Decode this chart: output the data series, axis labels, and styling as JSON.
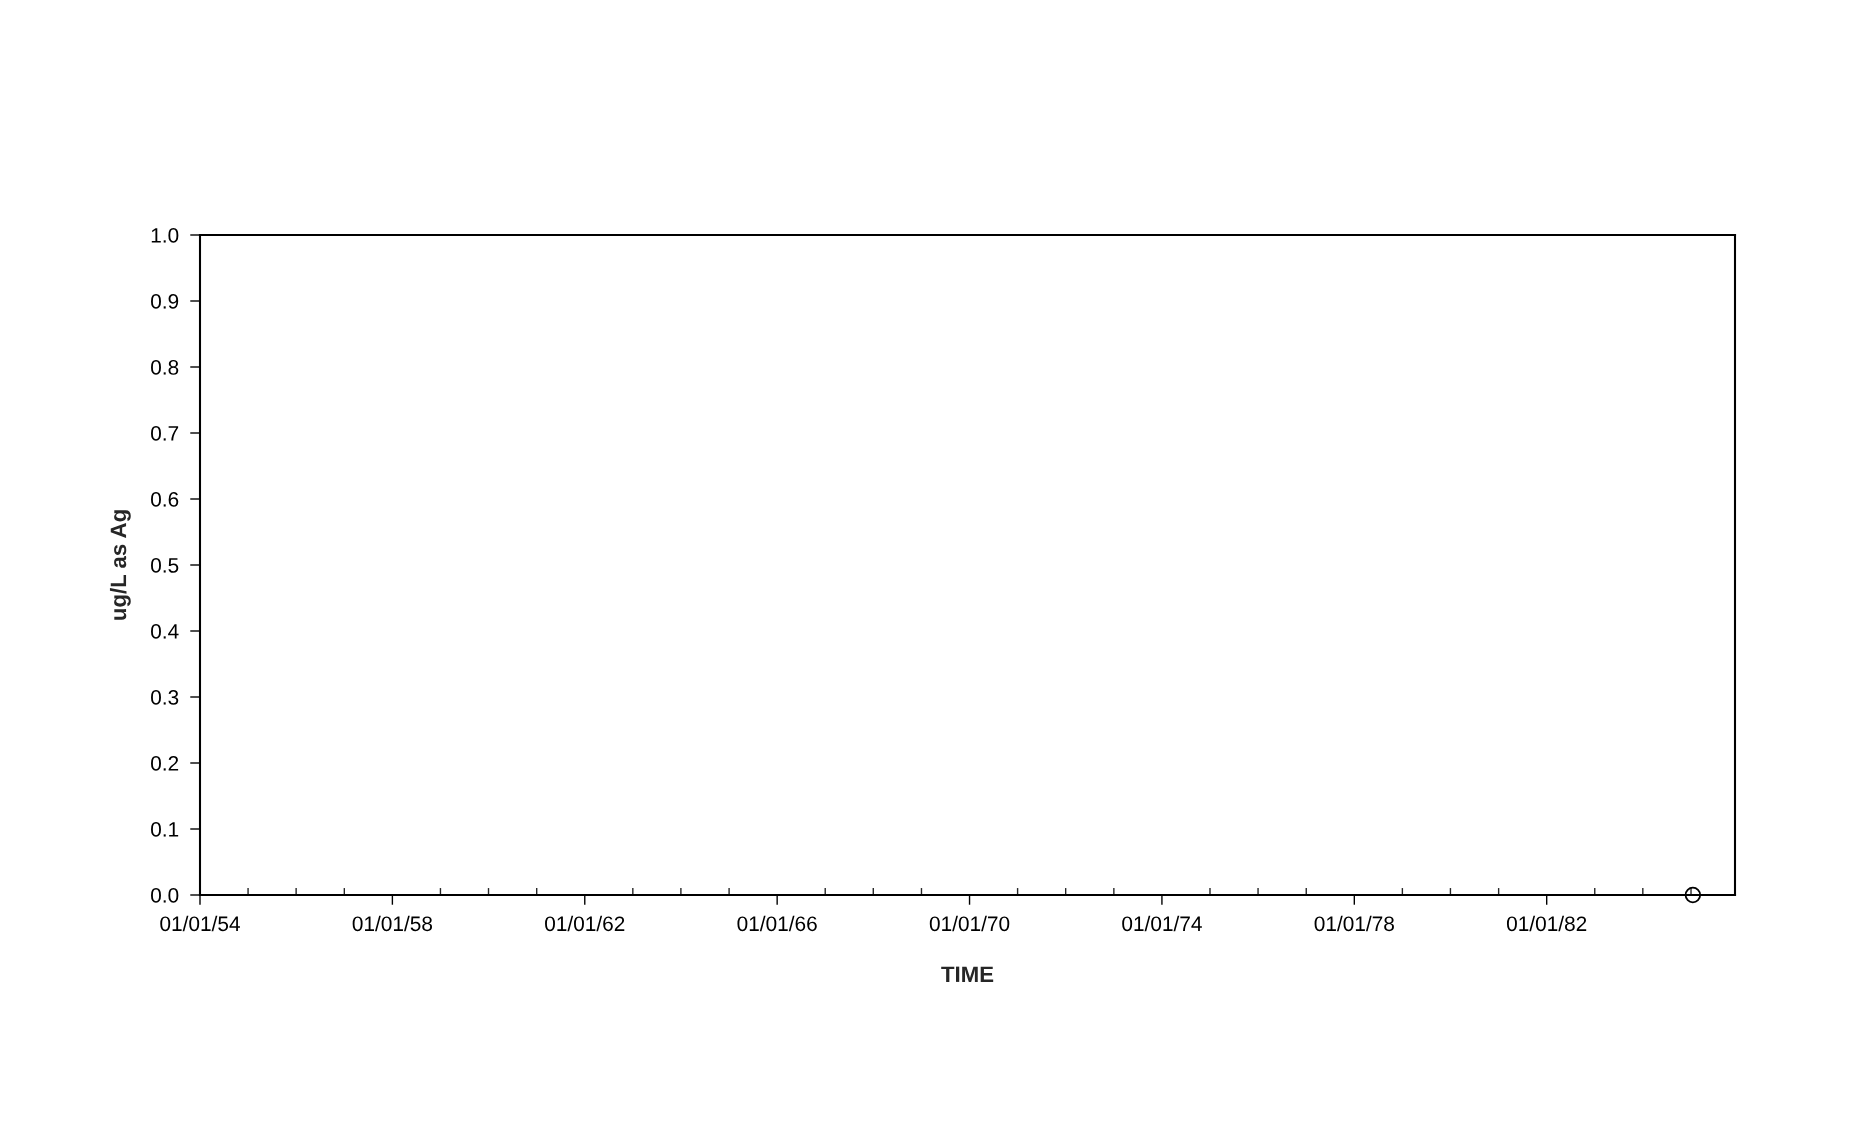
{
  "chart_data": {
    "type": "scatter",
    "xlabel": "TIME",
    "ylabel": "ug/L as Ag",
    "x": [
      "1985-01-15"
    ],
    "values": [
      0
    ],
    "color": "#000000",
    "marker": "circle",
    "xlim": [
      "1954-01-01",
      "1985-12-01"
    ],
    "xticks": [
      {
        "value": "1954-01-01",
        "label": "01/01/54"
      },
      {
        "value": "1955-01-01",
        "label": null
      },
      {
        "value": "1956-01-01",
        "label": null
      },
      {
        "value": "1957-01-01",
        "label": null
      },
      {
        "value": "1958-01-01",
        "label": "01/01/58"
      },
      {
        "value": "1959-01-01",
        "label": null
      },
      {
        "value": "1960-01-01",
        "label": null
      },
      {
        "value": "1961-01-01",
        "label": null
      },
      {
        "value": "1962-01-01",
        "label": "01/01/62"
      },
      {
        "value": "1963-01-01",
        "label": null
      },
      {
        "value": "1964-01-01",
        "label": null
      },
      {
        "value": "1965-01-01",
        "label": null
      },
      {
        "value": "1966-01-01",
        "label": "01/01/66"
      },
      {
        "value": "1967-01-01",
        "label": null
      },
      {
        "value": "1968-01-01",
        "label": null
      },
      {
        "value": "1969-01-01",
        "label": null
      },
      {
        "value": "1970-01-01",
        "label": "01/01/70"
      },
      {
        "value": "1971-01-01",
        "label": null
      },
      {
        "value": "1972-01-01",
        "label": null
      },
      {
        "value": "1973-01-01",
        "label": null
      },
      {
        "value": "1974-01-01",
        "label": "01/01/74"
      },
      {
        "value": "1975-01-01",
        "label": null
      },
      {
        "value": "1976-01-01",
        "label": null
      },
      {
        "value": "1977-01-01",
        "label": null
      },
      {
        "value": "1978-01-01",
        "label": "01/01/78"
      },
      {
        "value": "1979-01-01",
        "label": null
      },
      {
        "value": "1980-01-01",
        "label": null
      },
      {
        "value": "1981-01-01",
        "label": null
      },
      {
        "value": "1982-01-01",
        "label": "01/01/82"
      },
      {
        "value": "1983-01-01",
        "label": null
      },
      {
        "value": "1984-01-01",
        "label": null
      },
      {
        "value": "1985-01-01",
        "label": null
      }
    ],
    "ylim": [
      0,
      1
    ],
    "yticks": [
      {
        "value": 0,
        "label": "0.0"
      },
      {
        "value": 0.1,
        "label": "0.1"
      },
      {
        "value": 0.2,
        "label": "0.2"
      },
      {
        "value": 0.3,
        "label": "0.3"
      },
      {
        "value": 0.4,
        "label": "0.4"
      },
      {
        "value": 0.5,
        "label": "0.5"
      },
      {
        "value": 0.6,
        "label": "0.6"
      },
      {
        "value": 0.7,
        "label": "0.7"
      },
      {
        "value": 0.8,
        "label": "0.8"
      },
      {
        "value": 0.9,
        "label": "0.9"
      },
      {
        "value": 1,
        "label": "1.0"
      }
    ],
    "grid": false,
    "legend": false
  }
}
